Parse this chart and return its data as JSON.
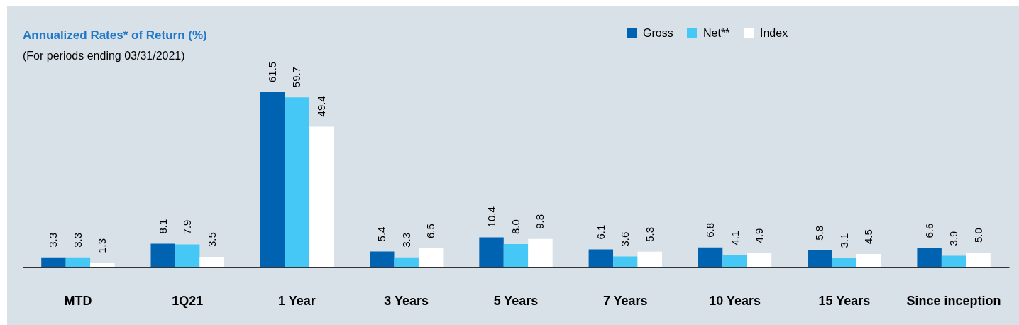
{
  "chart_data": {
    "type": "bar",
    "title": "Annualized Rates* of Return (%)",
    "subtitle": "(For periods ending 03/31/2021)",
    "categories": [
      "MTD",
      "1Q21",
      "1 Year",
      "3 Years",
      "5 Years",
      "7 Years",
      "10 Years",
      "15 Years",
      "Since inception"
    ],
    "series": [
      {
        "name": "Gross",
        "color": "#0063b1",
        "values": [
          3.3,
          8.1,
          61.5,
          5.4,
          10.4,
          6.1,
          6.8,
          5.8,
          6.6
        ],
        "value_labels": [
          "3.3",
          "8.1",
          "61.5",
          "5.4",
          "10.4",
          "6.1",
          "6.8",
          "5.8",
          "6.6"
        ]
      },
      {
        "name": "Net**",
        "color": "#45c8f5",
        "values": [
          3.3,
          7.9,
          59.7,
          3.3,
          8.0,
          3.6,
          4.1,
          3.1,
          3.9
        ],
        "value_labels": [
          "3.3",
          "7.9",
          "59.7",
          "3.3",
          "8.0",
          "3.6",
          "4.1",
          "3.1",
          "3.9"
        ]
      },
      {
        "name": "Index",
        "color": "#ffffff",
        "values": [
          1.3,
          3.5,
          49.4,
          6.5,
          9.8,
          5.3,
          4.9,
          4.5,
          5.0
        ],
        "value_labels": [
          "1.3",
          "3.5",
          "49.4",
          "6.5",
          "9.8",
          "5.3",
          "4.9",
          "4.5",
          "5.0"
        ]
      }
    ],
    "legend": "top right",
    "tick_labels": "x"
  }
}
